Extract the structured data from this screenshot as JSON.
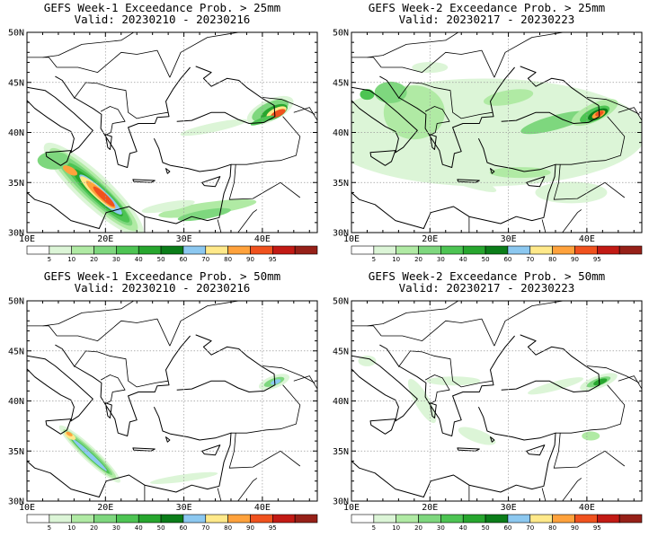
{
  "colors": {
    "scale": [
      "#ffffff",
      "#dcf5d7",
      "#b0eaa4",
      "#7ed77e",
      "#4dc453",
      "#27a62e",
      "#0b7d19",
      "#8cc8f0",
      "#ffe98a",
      "#ffa23c",
      "#f0521e",
      "#c21a14",
      "#962018"
    ],
    "coast": "#000000",
    "grid": "#9a9a9a"
  },
  "colorbar_labels": [
    "5",
    "10",
    "20",
    "30",
    "40",
    "50",
    "60",
    "70",
    "80",
    "90",
    "95"
  ],
  "lat_labels": [
    "50N",
    "45N",
    "40N",
    "35N",
    "30N"
  ],
  "lon_labels": [
    "10E",
    "20E",
    "30E",
    "40E"
  ],
  "panels": [
    {
      "title1": "GEFS Week-1 Exceedance Prob. > 25mm",
      "title2": "Valid: 20230210 - 20230216"
    },
    {
      "title1": "GEFS Week-2 Exceedance Prob. > 25mm",
      "title2": "Valid: 20230217 - 20230223"
    },
    {
      "title1": "GEFS Week-1 Exceedance Prob. > 50mm",
      "title2": "Valid: 20230210 - 20230216"
    },
    {
      "title1": "GEFS Week-2 Exceedance Prob. > 50mm",
      "title2": "Valid: 20230217 - 20230223"
    }
  ]
}
